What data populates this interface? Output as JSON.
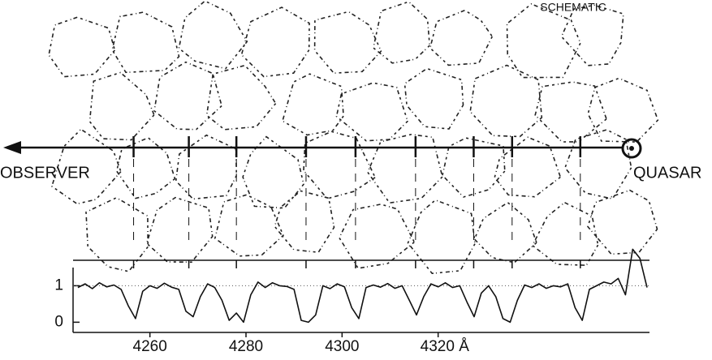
{
  "chart_data": {
    "type": "line",
    "annotations": {
      "observer": "OBSERVER",
      "quasar": "QUASAR",
      "schematic": "SCHEMATIC"
    },
    "absorbers": [
      4256.6,
      4268.1,
      4278.0,
      4292.5,
      4302.8,
      4315.3,
      4327.4,
      4335.4,
      4349.6
    ],
    "xlim": [
      4244,
      4364
    ],
    "xticks": [
      4260,
      4280,
      4300,
      {
        "value": 4320,
        "label": "4320 Å"
      }
    ],
    "ylim": [
      -0.28,
      2.12
    ],
    "yticks": [
      0,
      1
    ],
    "reference_line": 1,
    "color": "#111111",
    "x": [
      4245,
      4246.5,
      4248,
      4249.5,
      4251,
      4252.5,
      4254,
      4255.5,
      4257,
      4258.5,
      4260,
      4261.5,
      4263,
      4264.5,
      4266,
      4267.5,
      4269,
      4270.5,
      4272,
      4273.5,
      4275,
      4276.5,
      4278,
      4279.5,
      4281,
      4282.5,
      4284,
      4285.5,
      4287,
      4288.5,
      4290,
      4291.5,
      4293,
      4294.5,
      4296,
      4297.5,
      4299,
      4300.5,
      4302,
      4303.5,
      4305,
      4306.5,
      4308,
      4309.5,
      4311,
      4312.5,
      4314,
      4315.5,
      4317,
      4318.5,
      4320,
      4321.5,
      4323,
      4324.5,
      4326,
      4327.5,
      4329,
      4330.5,
      4332,
      4333.5,
      4335,
      4336.5,
      4338,
      4339.5,
      4341,
      4342.5,
      4344,
      4345.5,
      4347,
      4348.5,
      4350,
      4351.5,
      4353,
      4354.5,
      4356,
      4357.5,
      4359,
      4360.5,
      4362,
      4363.5
    ],
    "values": [
      0.95,
      1.05,
      0.92,
      1.08,
      0.97,
      1.02,
      0.9,
      0.45,
      0.1,
      0.85,
      1.0,
      0.93,
      1.07,
      0.96,
      0.9,
      0.3,
      0.15,
      0.7,
      1.05,
      0.95,
      0.6,
      0.05,
      0.25,
      0.0,
      0.75,
      1.1,
      0.95,
      1.08,
      1.0,
      0.98,
      0.9,
      0.05,
      0.0,
      0.2,
      1.0,
      0.92,
      1.05,
      0.97,
      0.4,
      0.1,
      0.95,
      1.02,
      0.96,
      1.06,
      0.93,
      1.0,
      0.6,
      0.2,
      0.7,
      1.05,
      0.97,
      1.08,
      0.95,
      1.0,
      0.55,
      0.15,
      0.8,
      1.0,
      0.7,
      0.1,
      0.0,
      0.6,
      1.02,
      0.95,
      1.05,
      0.93,
      1.0,
      0.97,
      1.05,
      0.4,
      0.05,
      0.9,
      1.0,
      1.1,
      1.05,
      1.2,
      0.75,
      2.0,
      1.75,
      0.95
    ]
  }
}
